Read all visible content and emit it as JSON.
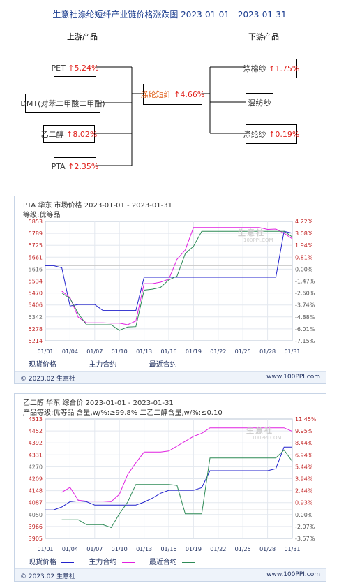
{
  "header": {
    "title": "生意社涤纶短纤产业链价格涨跌图 2023-01-01 - 2023-01-31",
    "upstream_label": "上游产品",
    "downstream_label": "下游产品"
  },
  "center": {
    "name": "涤纶短纤",
    "change": "4.66%"
  },
  "upstream": [
    {
      "name": "PET",
      "change": "5.24%"
    },
    {
      "name": "DMT(对苯二甲酸二甲酯)",
      "change": ""
    },
    {
      "name": "乙二醇",
      "change": "8.02%"
    },
    {
      "name": "PTA",
      "change": "2.35%"
    }
  ],
  "downstream": [
    {
      "name": "涤棉纱",
      "change": "1.75%"
    },
    {
      "name": "混纺纱",
      "change": ""
    },
    {
      "name": "涤纶纱",
      "change": "0.19%"
    }
  ],
  "colors": {
    "spot": "#2222cc",
    "main": "#e020e0",
    "recent": "#2e8b57",
    "up": "#e0201b",
    "axis_left": "#c02020",
    "axis_right": "#c02020"
  },
  "watermark": {
    "name": "生意社",
    "url": "100PPI.COM"
  },
  "chart_data": [
    {
      "type": "line",
      "title": "PTA 华东 市场价格 2023-01-01 - 2023-01-31",
      "subtitle": "等级:优等品",
      "x_ticks": [
        "01/01",
        "01/04",
        "01/07",
        "01/10",
        "01/13",
        "01/16",
        "01/19",
        "01/22",
        "01/25",
        "01/28",
        "01/31"
      ],
      "y_left_ticks": [
        "5853",
        "5789",
        "5725",
        "5661",
        "5616",
        "5534",
        "5470",
        "5406",
        "5342",
        "5278",
        "5214"
      ],
      "y_right_ticks": [
        "4.22%",
        "3.08%",
        "1.94%",
        "0.81%",
        "0.00%",
        "-1.47%",
        "-2.60%",
        "-3.74%",
        "-4.88%",
        "-6.01%",
        "-7.15%"
      ],
      "ylim": [
        5214,
        5853
      ],
      "baseline": 5616,
      "series": [
        {
          "name": "现货价格",
          "color": "#2222cc",
          "x": [
            1,
            2,
            3,
            4,
            5,
            6,
            7,
            8,
            9,
            10,
            11,
            12,
            13,
            14,
            15,
            16,
            17,
            18,
            19,
            20,
            21,
            22,
            23,
            24,
            25,
            26,
            27,
            28,
            29,
            30,
            31
          ],
          "values": [
            5616,
            5616,
            5605,
            5400,
            5408,
            5408,
            5408,
            5376,
            5376,
            5376,
            5376,
            5376,
            5554,
            5554,
            5554,
            5554,
            5554,
            5554,
            5554,
            5554,
            5554,
            5554,
            5554,
            5554,
            5554,
            5554,
            5554,
            5554,
            5554,
            5800,
            5790
          ]
        },
        {
          "name": "主力合约",
          "color": "#e020e0",
          "x": [
            3,
            4,
            5,
            6,
            7,
            8,
            9,
            10,
            11,
            12,
            13,
            14,
            15,
            16,
            17,
            18,
            19,
            20,
            21,
            22,
            23,
            24,
            25,
            26,
            27,
            28,
            29,
            30,
            31
          ],
          "values": [
            5480,
            5445,
            5340,
            5310,
            5310,
            5310,
            5308,
            5308,
            5300,
            5320,
            5520,
            5520,
            5528,
            5544,
            5650,
            5700,
            5820,
            5820,
            5820,
            5820,
            5820,
            5820,
            5820,
            5820,
            5820,
            5810,
            5812,
            5790,
            5760
          ]
        },
        {
          "name": "最近合约",
          "color": "#2e8b57",
          "x": [
            3,
            4,
            5,
            6,
            7,
            8,
            9,
            10,
            11,
            12,
            13,
            14,
            15,
            16,
            17,
            18,
            19,
            20,
            21,
            22,
            23,
            24,
            25,
            26,
            27,
            28,
            29,
            30,
            31
          ],
          "values": [
            5470,
            5440,
            5360,
            5300,
            5300,
            5300,
            5300,
            5270,
            5288,
            5290,
            5485,
            5490,
            5500,
            5540,
            5560,
            5680,
            5720,
            5800,
            5800,
            5800,
            5800,
            5800,
            5800,
            5800,
            5800,
            5800,
            5800,
            5800,
            5770
          ]
        }
      ],
      "legend": [
        "现货价格",
        "主力合约",
        "最近合约"
      ],
      "footer_left": "© 2023.02 生意社",
      "footer_right": "www.100PPI.com"
    },
    {
      "type": "line",
      "title": "乙二醇 华东 综合价 2023-01-01 - 2023-01-31",
      "subtitle": "产品等级:优等品 含量,w/%:≥99.8% 二乙二醇含量,w/%:≤0.10",
      "x_ticks": [
        "01/01",
        "01/04",
        "01/07",
        "01/10",
        "01/13",
        "01/16",
        "01/19",
        "01/22",
        "01/25",
        "01/28",
        "01/31"
      ],
      "y_left_ticks": [
        "4513",
        "4452",
        "4392",
        "4331",
        "4270",
        "4209",
        "4148",
        "4087",
        "4050",
        "3966",
        "3905"
      ],
      "y_right_ticks": [
        "11.45%",
        "9.95%",
        "8.44%",
        "6.94%",
        "5.44%",
        "3.94%",
        "2.44%",
        "0.93%",
        "0.00%",
        "-2.07%",
        "-3.57%"
      ],
      "ylim": [
        3905,
        4513
      ],
      "baseline": 4050,
      "series": [
        {
          "name": "现货价格",
          "color": "#2222cc",
          "x": [
            1,
            2,
            3,
            4,
            5,
            6,
            7,
            8,
            9,
            10,
            11,
            12,
            13,
            14,
            15,
            16,
            17,
            18,
            19,
            20,
            21,
            22,
            23,
            24,
            25,
            26,
            27,
            28,
            29,
            30,
            31
          ],
          "values": [
            4050,
            4050,
            4065,
            4092,
            4096,
            4092,
            4075,
            4075,
            4075,
            4075,
            4075,
            4075,
            4090,
            4110,
            4135,
            4150,
            4150,
            4150,
            4150,
            4163,
            4250,
            4250,
            4250,
            4250,
            4250,
            4250,
            4250,
            4250,
            4260,
            4370,
            4370
          ]
        },
        {
          "name": "主力合约",
          "color": "#e020e0",
          "x": [
            3,
            4,
            5,
            6,
            7,
            8,
            9,
            10,
            11,
            12,
            13,
            14,
            15,
            16,
            17,
            18,
            19,
            20,
            21,
            22,
            23,
            24,
            25,
            26,
            27,
            28,
            29,
            30,
            31
          ],
          "values": [
            4140,
            4165,
            4100,
            4095,
            4095,
            4095,
            4092,
            4130,
            4230,
            4290,
            4345,
            4345,
            4345,
            4350,
            4375,
            4400,
            4425,
            4440,
            4468,
            4468,
            4468,
            4468,
            4468,
            4468,
            4468,
            4468,
            4468,
            4468,
            4450
          ]
        },
        {
          "name": "最近合约",
          "color": "#2e8b57",
          "x": [
            3,
            4,
            5,
            6,
            7,
            8,
            9,
            10,
            11,
            12,
            13,
            14,
            15,
            16,
            17,
            18,
            19,
            20,
            21,
            22,
            23,
            24,
            25,
            26,
            27,
            28,
            29,
            30,
            31
          ],
          "values": [
            4000,
            4000,
            4000,
            3975,
            3975,
            3975,
            3960,
            4030,
            4090,
            4180,
            4180,
            4180,
            4180,
            4180,
            4175,
            4030,
            4030,
            4030,
            4315,
            4315,
            4315,
            4315,
            4315,
            4315,
            4315,
            4315,
            4315,
            4355,
            4298
          ]
        }
      ],
      "legend": [
        "现货价格",
        "主力合约",
        "最近合约"
      ],
      "footer_left": "© 2023.02 生意社",
      "footer_right": "www.100PPI.com"
    }
  ]
}
